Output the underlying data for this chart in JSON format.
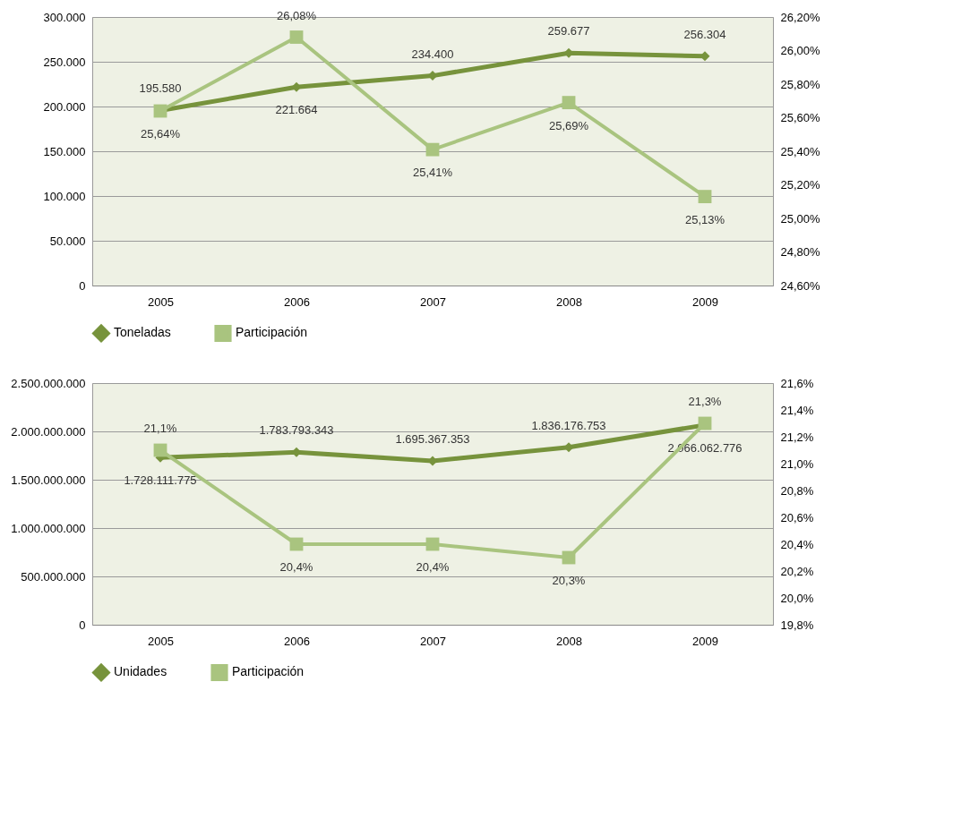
{
  "chart_data": [
    {
      "type": "line",
      "categories": [
        "2005",
        "2006",
        "2007",
        "2008",
        "2009"
      ],
      "series": [
        {
          "name": "Toneladas",
          "color": "#77933c",
          "marker": "diamond",
          "values": [
            195580,
            221664,
            234400,
            259677,
            256304
          ],
          "value_labels": [
            "195.580",
            "221.664",
            "234.400",
            "259.677",
            "256.304"
          ]
        },
        {
          "name": "Participación",
          "color": "#a9c47f",
          "marker": "square",
          "axis": "y2",
          "values": [
            25.64,
            26.08,
            25.41,
            25.69,
            25.13
          ],
          "value_labels": [
            "25,64%",
            "26,08%",
            "25,41%",
            "25,69%",
            "25,13%"
          ]
        }
      ],
      "ylim": [
        0,
        300000
      ],
      "yticks": [
        {
          "value": 0,
          "label": "0"
        },
        {
          "value": 50000,
          "label": "50.000"
        },
        {
          "value": 100000,
          "label": "100.000"
        },
        {
          "value": 150000,
          "label": "150.000"
        },
        {
          "value": 200000,
          "label": "200.000"
        },
        {
          "value": 250000,
          "label": "250.000"
        },
        {
          "value": 300000,
          "label": "300.000"
        }
      ],
      "y2lim": [
        24.6,
        26.2
      ],
      "y2ticks": [
        {
          "value": 24.6,
          "label": "24,60%"
        },
        {
          "value": 24.8,
          "label": "24,80%"
        },
        {
          "value": 25,
          "label": "25,00%"
        },
        {
          "value": 25.2,
          "label": "25,20%"
        },
        {
          "value": 25.4,
          "label": "25,40%"
        },
        {
          "value": 25.6,
          "label": "25,60%"
        },
        {
          "value": 25.8,
          "label": "25,80%"
        },
        {
          "value": 26,
          "label": "26,00%"
        },
        {
          "value": 26.2,
          "label": "26,20%"
        }
      ],
      "grid": "y",
      "legend": "bottom"
    },
    {
      "type": "line",
      "categories": [
        "2005",
        "2006",
        "2007",
        "2008",
        "2009"
      ],
      "series": [
        {
          "name": "Unidades",
          "color": "#77933c",
          "marker": "diamond",
          "values": [
            1728111775,
            1783793343,
            1695367353,
            1836176753,
            2066062776
          ],
          "value_labels": [
            "1.728.111.775",
            "1.783.793.343",
            "1.695.367.353",
            "1.836.176.753",
            "2.066.062.776"
          ]
        },
        {
          "name": "Participación",
          "color": "#a9c47f",
          "marker": "square",
          "axis": "y2",
          "values": [
            21.1,
            20.4,
            20.4,
            20.3,
            21.3
          ],
          "value_labels": [
            "21,1%",
            "20,4%",
            "20,4%",
            "20,3%",
            "21,3%"
          ]
        }
      ],
      "ylim": [
        0,
        2500000000
      ],
      "yticks": [
        {
          "value": 0,
          "label": "0"
        },
        {
          "value": 500000000,
          "label": "500.000.000"
        },
        {
          "value": 1000000000,
          "label": "1.000.000.000"
        },
        {
          "value": 1500000000,
          "label": "1.500.000.000"
        },
        {
          "value": 2000000000,
          "label": "2.000.000.000"
        },
        {
          "value": 2500000000,
          "label": "2.500.000.000"
        }
      ],
      "y2lim": [
        19.8,
        21.6
      ],
      "y2ticks": [
        {
          "value": 19.8,
          "label": "19,8%"
        },
        {
          "value": 20,
          "label": "20,0%"
        },
        {
          "value": 20.2,
          "label": "20,2%"
        },
        {
          "value": 20.4,
          "label": "20,4%"
        },
        {
          "value": 20.6,
          "label": "20,6%"
        },
        {
          "value": 20.8,
          "label": "20,8%"
        },
        {
          "value": 21,
          "label": "21,0%"
        },
        {
          "value": 21.2,
          "label": "21,2%"
        },
        {
          "value": 21.4,
          "label": "21,4%"
        },
        {
          "value": 21.6,
          "label": "21,6%"
        }
      ],
      "grid": "y",
      "legend": "bottom"
    }
  ]
}
